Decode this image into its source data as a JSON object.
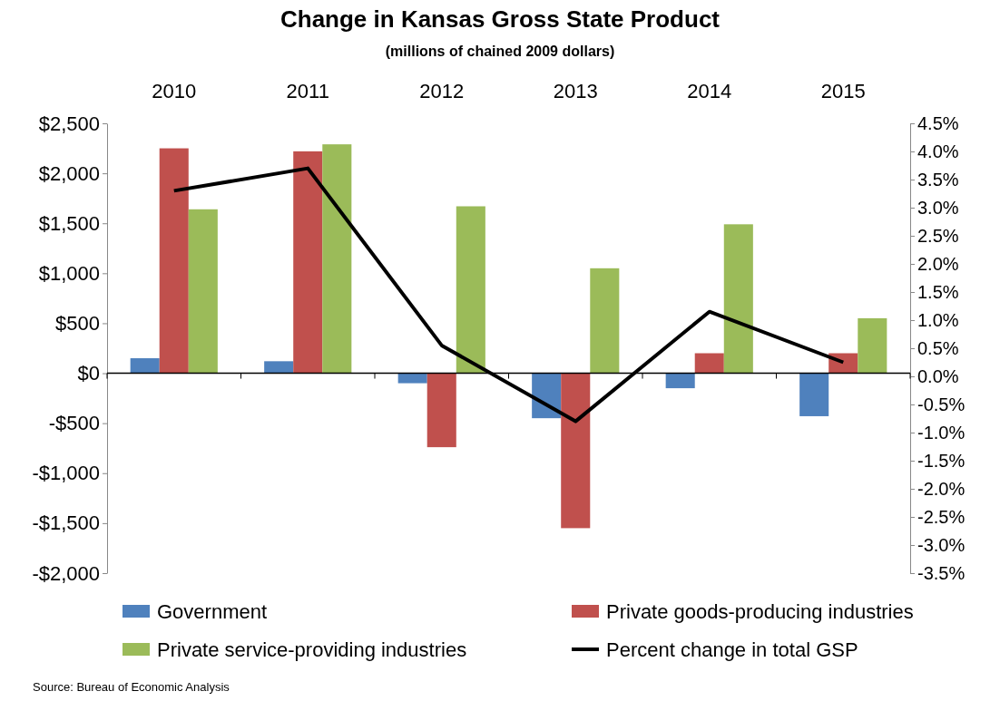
{
  "chart_data": {
    "type": "bar",
    "title": "Change in Kansas Gross State Product",
    "subtitle": "(millions of chained 2009 dollars)",
    "categories": [
      "2010",
      "2011",
      "2012",
      "2013",
      "2014",
      "2015"
    ],
    "series": [
      {
        "name": "Government",
        "color": "#4f81bd",
        "values": [
          150,
          120,
          -100,
          -450,
          -150,
          -430
        ]
      },
      {
        "name": "Private goods-producing industries",
        "color": "#c0504d",
        "values": [
          2250,
          2220,
          -740,
          -1550,
          200,
          200
        ]
      },
      {
        "name": "Private service-providing industries",
        "color": "#9bbb59",
        "values": [
          1640,
          2290,
          1670,
          1050,
          1490,
          550
        ]
      },
      {
        "name": "Percent change in total GSP",
        "color": "#000000",
        "type": "line",
        "axis": "y2",
        "values": [
          3.3,
          3.7,
          0.55,
          -0.8,
          1.15,
          0.25
        ]
      }
    ],
    "ylim": [
      -2000,
      2500
    ],
    "yticks": [
      {
        "value": 2500,
        "label": "$2,500"
      },
      {
        "value": 2000,
        "label": "$2,000"
      },
      {
        "value": 1500,
        "label": "$1,500"
      },
      {
        "value": 1000,
        "label": "$1,000"
      },
      {
        "value": 500,
        "label": "$500"
      },
      {
        "value": 0,
        "label": "$0"
      },
      {
        "value": -500,
        "label": "-$500"
      },
      {
        "value": -1000,
        "label": "-$1,000"
      },
      {
        "value": -1500,
        "label": "-$1,500"
      },
      {
        "value": -2000,
        "label": "-$2,000"
      }
    ],
    "y2lim": [
      -3.5,
      4.5
    ],
    "y2ticks": [
      {
        "value": 4.5,
        "label": "4.5%"
      },
      {
        "value": 4,
        "label": "4.0%"
      },
      {
        "value": 3.5,
        "label": "3.5%"
      },
      {
        "value": 3,
        "label": "3.0%"
      },
      {
        "value": 2.5,
        "label": "2.5%"
      },
      {
        "value": 2,
        "label": "2.0%"
      },
      {
        "value": 1.5,
        "label": "1.5%"
      },
      {
        "value": 1,
        "label": "1.0%"
      },
      {
        "value": 0.5,
        "label": "0.5%"
      },
      {
        "value": 0,
        "label": "0.0%"
      },
      {
        "value": -0.5,
        "label": "-0.5%"
      },
      {
        "value": -1,
        "label": "-1.0%"
      },
      {
        "value": -1.5,
        "label": "-1.5%"
      },
      {
        "value": -2,
        "label": "-2.0%"
      },
      {
        "value": -2.5,
        "label": "-2.5%"
      },
      {
        "value": -3,
        "label": "-3.0%"
      },
      {
        "value": -3.5,
        "label": "-3.5%"
      }
    ],
    "legend": "bottom",
    "marker": "none",
    "line_style": "solid",
    "annotations": [
      "Source:  Bureau of Economic Analysis"
    ]
  }
}
